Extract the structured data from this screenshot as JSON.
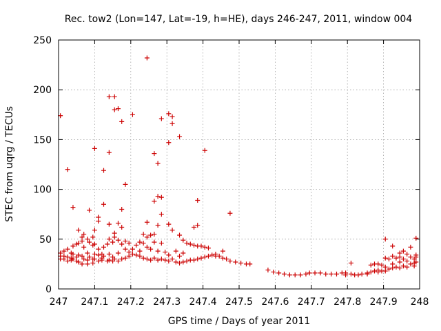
{
  "chart_data": {
    "type": "scatter",
    "title": "Rec. tow2 (Lon=147, Lat=-19, h=HE), days 246-247, 2011, window 004",
    "xlabel": "GPS time / Days of year 2011",
    "ylabel": "STEC from uqrg / TECUs",
    "xlim": [
      247,
      248
    ],
    "ylim": [
      0,
      250
    ],
    "xticks": [
      "247",
      "247.1",
      "247.2",
      "247.3",
      "247.4",
      "247.5",
      "247.6",
      "247.7",
      "247.8",
      "247.9",
      "248"
    ],
    "yticks": [
      "0",
      "50",
      "100",
      "150",
      "200",
      "250"
    ],
    "grid": true,
    "marker": "plus",
    "color": "#cc0000",
    "points": [
      [
        247.005,
        174
      ],
      [
        247.005,
        36
      ],
      [
        247.005,
        33
      ],
      [
        247.005,
        30
      ],
      [
        247.015,
        38
      ],
      [
        247.015,
        33
      ],
      [
        247.015,
        30
      ],
      [
        247.025,
        120
      ],
      [
        247.025,
        40
      ],
      [
        247.025,
        32
      ],
      [
        247.025,
        28
      ],
      [
        247.035,
        36
      ],
      [
        247.035,
        31
      ],
      [
        247.035,
        29
      ],
      [
        247.04,
        82
      ],
      [
        247.04,
        43
      ],
      [
        247.04,
        35
      ],
      [
        247.04,
        30
      ],
      [
        247.05,
        45
      ],
      [
        247.05,
        32
      ],
      [
        247.05,
        28
      ],
      [
        247.055,
        59
      ],
      [
        247.055,
        46
      ],
      [
        247.055,
        34
      ],
      [
        247.055,
        27
      ],
      [
        247.065,
        52
      ],
      [
        247.065,
        48
      ],
      [
        247.065,
        33
      ],
      [
        247.065,
        25
      ],
      [
        247.07,
        55
      ],
      [
        247.07,
        42
      ],
      [
        247.07,
        30
      ],
      [
        247.08,
        50
      ],
      [
        247.08,
        36
      ],
      [
        247.08,
        29
      ],
      [
        247.08,
        25
      ],
      [
        247.085,
        79
      ],
      [
        247.085,
        47
      ],
      [
        247.085,
        32
      ],
      [
        247.095,
        52
      ],
      [
        247.095,
        44
      ],
      [
        247.095,
        30
      ],
      [
        247.095,
        26
      ],
      [
        247.1,
        141
      ],
      [
        247.1,
        59
      ],
      [
        247.1,
        45
      ],
      [
        247.1,
        35
      ],
      [
        247.1,
        30
      ],
      [
        247.11,
        72
      ],
      [
        247.11,
        68
      ],
      [
        247.11,
        40
      ],
      [
        247.11,
        34
      ],
      [
        247.11,
        28
      ],
      [
        247.12,
        35
      ],
      [
        247.12,
        31
      ],
      [
        247.12,
        29
      ],
      [
        247.125,
        119
      ],
      [
        247.125,
        85
      ],
      [
        247.125,
        42
      ],
      [
        247.125,
        33
      ],
      [
        247.135,
        45
      ],
      [
        247.135,
        28
      ],
      [
        247.14,
        193
      ],
      [
        247.14,
        137
      ],
      [
        247.14,
        65
      ],
      [
        247.14,
        50
      ],
      [
        247.14,
        35
      ],
      [
        247.14,
        29
      ],
      [
        247.15,
        47
      ],
      [
        247.15,
        32
      ],
      [
        247.15,
        28
      ],
      [
        247.155,
        193
      ],
      [
        247.155,
        180
      ],
      [
        247.155,
        56
      ],
      [
        247.155,
        52
      ],
      [
        247.155,
        30
      ],
      [
        247.165,
        181
      ],
      [
        247.165,
        66
      ],
      [
        247.165,
        49
      ],
      [
        247.165,
        36
      ],
      [
        247.165,
        28
      ],
      [
        247.175,
        168
      ],
      [
        247.175,
        80
      ],
      [
        247.175,
        62
      ],
      [
        247.175,
        45
      ],
      [
        247.175,
        30
      ],
      [
        247.185,
        105
      ],
      [
        247.185,
        48
      ],
      [
        247.185,
        40
      ],
      [
        247.185,
        31
      ],
      [
        247.195,
        46
      ],
      [
        247.195,
        37
      ],
      [
        247.195,
        33
      ],
      [
        247.205,
        175
      ],
      [
        247.205,
        40
      ],
      [
        247.205,
        35
      ],
      [
        247.215,
        44
      ],
      [
        247.215,
        34
      ],
      [
        247.225,
        47
      ],
      [
        247.225,
        38
      ],
      [
        247.225,
        33
      ],
      [
        247.235,
        55
      ],
      [
        247.235,
        46
      ],
      [
        247.235,
        31
      ],
      [
        247.245,
        232
      ],
      [
        247.245,
        67
      ],
      [
        247.245,
        52
      ],
      [
        247.245,
        42
      ],
      [
        247.245,
        30
      ],
      [
        247.255,
        54
      ],
      [
        247.255,
        40
      ],
      [
        247.255,
        29
      ],
      [
        247.265,
        136
      ],
      [
        247.265,
        88
      ],
      [
        247.265,
        55
      ],
      [
        247.265,
        47
      ],
      [
        247.265,
        31
      ],
      [
        247.275,
        126
      ],
      [
        247.275,
        93
      ],
      [
        247.275,
        64
      ],
      [
        247.275,
        38
      ],
      [
        247.275,
        29
      ],
      [
        247.285,
        171
      ],
      [
        247.285,
        92
      ],
      [
        247.285,
        75
      ],
      [
        247.285,
        46
      ],
      [
        247.285,
        30
      ],
      [
        247.295,
        37
      ],
      [
        247.295,
        29
      ],
      [
        247.305,
        176
      ],
      [
        247.305,
        147
      ],
      [
        247.305,
        65
      ],
      [
        247.305,
        34
      ],
      [
        247.305,
        28
      ],
      [
        247.315,
        173
      ],
      [
        247.315,
        166
      ],
      [
        247.315,
        59
      ],
      [
        247.315,
        30
      ],
      [
        247.325,
        38
      ],
      [
        247.325,
        27
      ],
      [
        247.335,
        153
      ],
      [
        247.335,
        54
      ],
      [
        247.335,
        33
      ],
      [
        247.335,
        26
      ],
      [
        247.345,
        49
      ],
      [
        247.345,
        36
      ],
      [
        247.345,
        27
      ],
      [
        247.355,
        46
      ],
      [
        247.355,
        28
      ],
      [
        247.365,
        45
      ],
      [
        247.365,
        29
      ],
      [
        247.375,
        62
      ],
      [
        247.375,
        44
      ],
      [
        247.375,
        29
      ],
      [
        247.385,
        89
      ],
      [
        247.385,
        64
      ],
      [
        247.385,
        43
      ],
      [
        247.385,
        30
      ],
      [
        247.395,
        43
      ],
      [
        247.395,
        31
      ],
      [
        247.405,
        139
      ],
      [
        247.405,
        42
      ],
      [
        247.405,
        32
      ],
      [
        247.415,
        41
      ],
      [
        247.415,
        33
      ],
      [
        247.425,
        34
      ],
      [
        247.435,
        35
      ],
      [
        247.435,
        33
      ],
      [
        247.445,
        33
      ],
      [
        247.455,
        38
      ],
      [
        247.455,
        31
      ],
      [
        247.465,
        30
      ],
      [
        247.475,
        76
      ],
      [
        247.475,
        28
      ],
      [
        247.49,
        27
      ],
      [
        247.505,
        26
      ],
      [
        247.52,
        25
      ],
      [
        247.53,
        25
      ],
      [
        247.58,
        19
      ],
      [
        247.595,
        17
      ],
      [
        247.61,
        16
      ],
      [
        247.625,
        15
      ],
      [
        247.64,
        14
      ],
      [
        247.655,
        14
      ],
      [
        247.67,
        14
      ],
      [
        247.685,
        15
      ],
      [
        247.695,
        16
      ],
      [
        247.71,
        16
      ],
      [
        247.725,
        16
      ],
      [
        247.74,
        15
      ],
      [
        247.755,
        15
      ],
      [
        247.77,
        15
      ],
      [
        247.785,
        16
      ],
      [
        247.795,
        16
      ],
      [
        247.795,
        14
      ],
      [
        247.81,
        26
      ],
      [
        247.81,
        15
      ],
      [
        247.82,
        14
      ],
      [
        247.83,
        14
      ],
      [
        247.84,
        15
      ],
      [
        247.855,
        16
      ],
      [
        247.855,
        15
      ],
      [
        247.865,
        24
      ],
      [
        247.865,
        17
      ],
      [
        247.875,
        25
      ],
      [
        247.875,
        18
      ],
      [
        247.885,
        25
      ],
      [
        247.885,
        19
      ],
      [
        247.885,
        17
      ],
      [
        247.895,
        24
      ],
      [
        247.895,
        18
      ],
      [
        247.905,
        50
      ],
      [
        247.905,
        31
      ],
      [
        247.905,
        22
      ],
      [
        247.905,
        18
      ],
      [
        247.915,
        30
      ],
      [
        247.915,
        20
      ],
      [
        247.925,
        43
      ],
      [
        247.925,
        33
      ],
      [
        247.925,
        25
      ],
      [
        247.925,
        21
      ],
      [
        247.935,
        31
      ],
      [
        247.935,
        22
      ],
      [
        247.945,
        36
      ],
      [
        247.945,
        32
      ],
      [
        247.945,
        27
      ],
      [
        247.945,
        21
      ],
      [
        247.955,
        38
      ],
      [
        247.955,
        30
      ],
      [
        247.955,
        23
      ],
      [
        247.965,
        35
      ],
      [
        247.965,
        28
      ],
      [
        247.965,
        22
      ],
      [
        247.975,
        42
      ],
      [
        247.975,
        32
      ],
      [
        247.975,
        25
      ],
      [
        247.985,
        30
      ],
      [
        247.985,
        26
      ],
      [
        247.985,
        23
      ],
      [
        247.99,
        51
      ],
      [
        247.99,
        34
      ],
      [
        247.99,
        32
      ],
      [
        247.99,
        27
      ]
    ]
  }
}
